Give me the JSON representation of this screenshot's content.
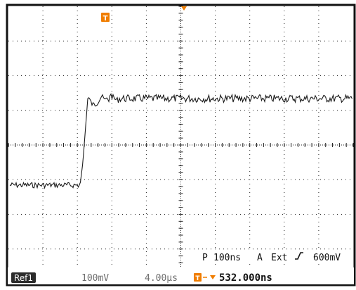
{
  "scope": {
    "trigger_marker_label": "T",
    "trigger_settings": {
      "p_label": "P",
      "timebase": "100ns",
      "a_label": "A",
      "source": "Ext",
      "level": "600mV"
    },
    "status_bar": {
      "reference": "Ref1",
      "volts_per_div": "100mV",
      "record_time": "4.00µs",
      "trigger_position": "532.000ns"
    },
    "colors": {
      "background": "#ffffff",
      "grid": "#222222",
      "trace": "#1a1a1a",
      "trigger_marker": "#f07d00",
      "ref_badge": "#2c2c2c"
    },
    "grid": {
      "h_divisions": 10,
      "v_divisions": 8
    }
  }
}
